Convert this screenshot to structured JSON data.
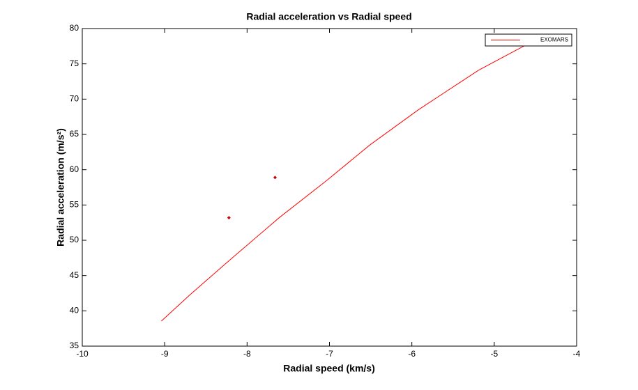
{
  "chart_data": {
    "type": "line",
    "title": "Radial acceleration vs Radial speed",
    "x_label": "Radial speed (km/s)",
    "y_label": "Radial acceleration (m/s²)",
    "series": [
      {
        "name": "EXOMARS",
        "color": "#ff0000",
        "x": [
          -9.04,
          -8.7,
          -8.2,
          -7.61,
          -7.02,
          -6.51,
          -5.92,
          -5.19,
          -4.58
        ],
        "values": [
          38.55,
          42.2,
          47.3,
          53.2,
          58.6,
          63.5,
          68.5,
          74.1,
          77.9
        ]
      }
    ],
    "markers": {
      "color": "#cc0000",
      "x": [
        -8.22,
        -7.66
      ],
      "values": [
        53.2,
        58.9
      ]
    },
    "xlim": [
      -10,
      -4
    ],
    "xticks": [
      -10,
      -9,
      -8,
      -7,
      -6,
      -5,
      -4
    ],
    "ylim": [
      35,
      80
    ],
    "yticks": [
      35,
      40,
      45,
      50,
      55,
      60,
      65,
      70,
      75,
      80
    ],
    "legend": "northeast"
  }
}
